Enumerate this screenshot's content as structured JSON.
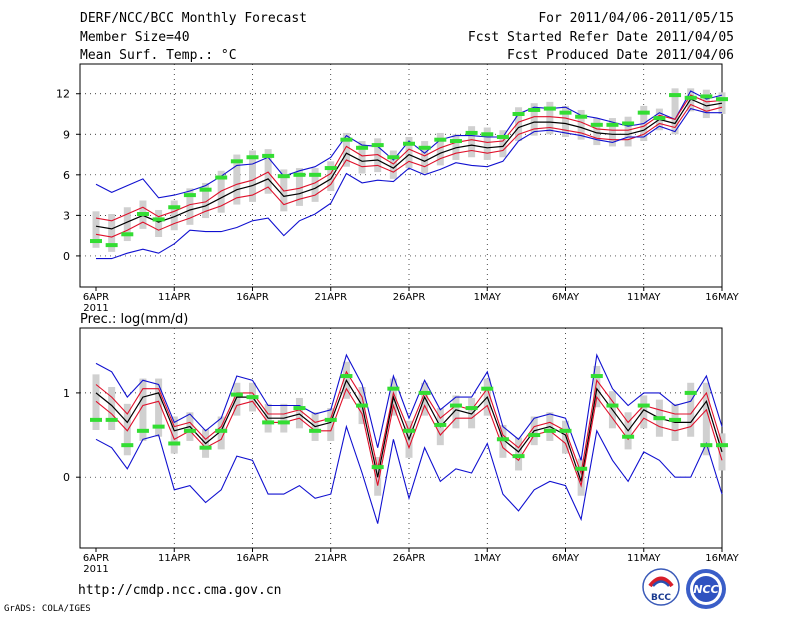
{
  "header": {
    "title": "DERF/NCC/BCC Monthly Forecast",
    "member_size": "Member Size=40",
    "variable_temp": "Mean Surf. Temp.: °C",
    "period": "For 2011/04/06-2011/05/15",
    "started": "Fcst Started Refer Date 2011/04/05",
    "produced": "Fcst Produced Date 2011/04/06"
  },
  "footer": {
    "url": "http://cmdp.ncc.cma.gov.cn",
    "grads": "GrADS: COLA/IGES"
  },
  "logos": {
    "bcc": "BCC",
    "ncc": "NCC"
  },
  "colors": {
    "mean": "#000000",
    "spread": "#e0102a",
    "envelope": "#1010d0",
    "box": "#d0d0d0",
    "median": "#33dd33"
  },
  "chart_data": [
    {
      "type": "line",
      "title": "Mean Surf. Temp.: °C",
      "unit": "°C",
      "x_ticks": [
        "6APR",
        "11APR",
        "16APR",
        "21APR",
        "26APR",
        "1MAY",
        "6MAY",
        "11MAY",
        "16MAY"
      ],
      "x_year": "2011",
      "y_ticks": [
        0,
        3,
        6,
        9,
        12
      ],
      "ylim": [
        -2.3,
        14.2
      ],
      "days": 41,
      "series": [
        {
          "name": "ensemble-max",
          "values": [
            5.3,
            4.7,
            5.2,
            5.7,
            4.3,
            4.5,
            4.8,
            5.2,
            5.9,
            6.7,
            6.8,
            7.3,
            5.9,
            6.3,
            6.6,
            7.3,
            8.9,
            8.2,
            8.1,
            7.1,
            8.5,
            7.6,
            8.6,
            8.9,
            8.9,
            8.8,
            8.8,
            10.5,
            11.0,
            10.9,
            11.0,
            10.4,
            10.2,
            9.9,
            9.6,
            9.8,
            10.6,
            10.1,
            12.2,
            11.6,
            11.9
          ]
        },
        {
          "name": "upper-spread",
          "values": [
            2.8,
            2.6,
            3.1,
            3.6,
            2.9,
            3.3,
            3.8,
            4.0,
            4.8,
            5.3,
            5.6,
            6.2,
            4.8,
            5.0,
            5.4,
            6.1,
            8.1,
            7.4,
            7.5,
            6.8,
            7.9,
            7.4,
            8.0,
            8.4,
            8.6,
            8.4,
            8.5,
            9.9,
            10.3,
            10.3,
            10.2,
            9.9,
            9.4,
            9.3,
            9.3,
            9.6,
            10.4,
            10.1,
            11.9,
            11.4,
            11.5
          ]
        },
        {
          "name": "ensemble-mean",
          "values": [
            2.2,
            2.0,
            2.5,
            3.0,
            2.5,
            2.9,
            3.4,
            3.7,
            4.3,
            4.9,
            5.2,
            5.7,
            4.4,
            4.6,
            5.0,
            5.7,
            7.6,
            7.0,
            7.1,
            6.5,
            7.5,
            7.0,
            7.6,
            8.0,
            8.2,
            8.0,
            8.1,
            9.5,
            9.9,
            9.9,
            9.8,
            9.5,
            9.1,
            9.0,
            9.0,
            9.3,
            10.1,
            9.8,
            11.6,
            11.1,
            11.3
          ]
        },
        {
          "name": "lower-spread",
          "values": [
            1.6,
            1.4,
            1.9,
            2.5,
            1.9,
            2.4,
            2.8,
            3.3,
            3.7,
            4.3,
            4.5,
            5.1,
            3.8,
            4.2,
            4.5,
            5.3,
            7.1,
            6.6,
            6.7,
            6.2,
            7.0,
            6.6,
            7.2,
            7.6,
            7.8,
            7.6,
            7.8,
            9.0,
            9.4,
            9.5,
            9.3,
            9.1,
            8.7,
            8.6,
            8.6,
            9.0,
            9.8,
            9.5,
            11.2,
            10.7,
            11.0
          ]
        },
        {
          "name": "ensemble-min",
          "values": [
            -0.2,
            -0.2,
            0.2,
            0.5,
            0.2,
            0.9,
            1.9,
            1.8,
            1.8,
            2.1,
            2.6,
            2.8,
            1.5,
            2.6,
            3.1,
            3.9,
            6.1,
            5.4,
            5.6,
            5.5,
            6.5,
            6.0,
            6.4,
            6.9,
            6.7,
            6.6,
            7.0,
            8.5,
            9.2,
            9.3,
            9.1,
            8.9,
            8.6,
            8.4,
            8.8,
            8.8,
            9.6,
            9.2,
            10.9,
            10.6,
            10.6
          ]
        },
        {
          "name": "median",
          "values": [
            1.1,
            0.8,
            1.6,
            3.1,
            2.7,
            3.6,
            4.5,
            4.9,
            5.8,
            7.0,
            7.3,
            7.4,
            5.9,
            6.0,
            6.0,
            6.5,
            8.6,
            8.0,
            8.2,
            7.3,
            8.3,
            8.0,
            8.6,
            8.5,
            9.1,
            9.0,
            8.8,
            10.5,
            10.8,
            10.9,
            10.6,
            10.3,
            9.7,
            9.7,
            9.8,
            10.6,
            10.2,
            11.9,
            11.7,
            11.8,
            11.6
          ]
        }
      ]
    },
    {
      "type": "line",
      "title": "Prec.: log(mm/d)",
      "unit": "log(mm/d)",
      "x_ticks": [
        "6APR",
        "11APR",
        "16APR",
        "21APR",
        "26APR",
        "1MAY",
        "6MAY",
        "11MAY",
        "16MAY"
      ],
      "x_year": "2011",
      "y_ticks": [
        0,
        1
      ],
      "ylim": [
        -0.84,
        1.77
      ],
      "days": 41,
      "series": [
        {
          "name": "ensemble-max",
          "values": [
            1.35,
            1.25,
            0.95,
            1.15,
            1.1,
            0.65,
            0.75,
            0.55,
            0.7,
            1.2,
            1.15,
            0.85,
            0.85,
            0.85,
            0.75,
            0.8,
            1.45,
            1.1,
            0.35,
            1.2,
            0.7,
            1.15,
            0.8,
            0.95,
            0.95,
            1.25,
            0.6,
            0.45,
            0.7,
            0.75,
            0.7,
            0.2,
            1.45,
            1.05,
            0.85,
            1.0,
            1.0,
            0.85,
            0.9,
            1.2,
            0.6
          ]
        },
        {
          "name": "upper-spread",
          "values": [
            1.1,
            0.95,
            0.75,
            1.05,
            1.05,
            0.6,
            0.65,
            0.45,
            0.6,
            1.0,
            1.0,
            0.75,
            0.75,
            0.8,
            0.65,
            0.7,
            1.25,
            0.95,
            0.1,
            1.0,
            0.55,
            1.0,
            0.7,
            0.85,
            0.8,
            1.05,
            0.5,
            0.35,
            0.6,
            0.65,
            0.55,
            0.05,
            1.15,
            0.9,
            0.65,
            0.85,
            0.8,
            0.75,
            0.75,
            1.0,
            0.4
          ]
        },
        {
          "name": "ensemble-mean",
          "values": [
            1.0,
            0.85,
            0.65,
            0.95,
            1.0,
            0.55,
            0.6,
            0.4,
            0.55,
            0.95,
            0.95,
            0.7,
            0.7,
            0.75,
            0.6,
            0.65,
            1.15,
            0.85,
            0.0,
            0.95,
            0.45,
            0.95,
            0.6,
            0.8,
            0.75,
            0.95,
            0.45,
            0.3,
            0.55,
            0.6,
            0.5,
            -0.05,
            1.05,
            0.8,
            0.55,
            0.8,
            0.7,
            0.65,
            0.65,
            0.9,
            0.3
          ]
        },
        {
          "name": "lower-spread",
          "values": [
            0.9,
            0.75,
            0.55,
            0.85,
            0.9,
            0.45,
            0.55,
            0.35,
            0.45,
            0.85,
            0.9,
            0.65,
            0.65,
            0.7,
            0.55,
            0.55,
            1.05,
            0.75,
            -0.1,
            0.85,
            0.35,
            0.85,
            0.5,
            0.7,
            0.7,
            0.85,
            0.35,
            0.2,
            0.5,
            0.55,
            0.4,
            -0.1,
            0.95,
            0.7,
            0.45,
            0.7,
            0.6,
            0.55,
            0.6,
            0.8,
            0.2
          ]
        },
        {
          "name": "ensemble-min",
          "values": [
            0.45,
            0.35,
            0.1,
            0.45,
            0.5,
            -0.15,
            -0.1,
            -0.3,
            -0.15,
            0.25,
            0.2,
            -0.2,
            -0.2,
            -0.1,
            -0.25,
            -0.2,
            0.6,
            0.05,
            -0.55,
            0.45,
            -0.25,
            0.35,
            -0.05,
            0.1,
            0.05,
            0.4,
            -0.2,
            -0.4,
            -0.15,
            -0.05,
            -0.1,
            -0.5,
            0.55,
            0.2,
            -0.05,
            0.3,
            0.2,
            0.0,
            0.0,
            0.4,
            -0.2
          ]
        },
        {
          "name": "median",
          "values": [
            0.68,
            0.68,
            0.38,
            0.55,
            0.6,
            0.4,
            0.55,
            0.35,
            0.55,
            0.98,
            0.95,
            0.65,
            0.65,
            0.82,
            0.55,
            0.68,
            1.2,
            0.85,
            0.12,
            1.05,
            0.55,
            1.0,
            0.62,
            0.85,
            0.82,
            1.05,
            0.45,
            0.25,
            0.5,
            0.55,
            0.55,
            0.1,
            1.2,
            0.85,
            0.48,
            0.85,
            0.7,
            0.68,
            1.0,
            0.38,
            0.38
          ]
        }
      ]
    }
  ]
}
